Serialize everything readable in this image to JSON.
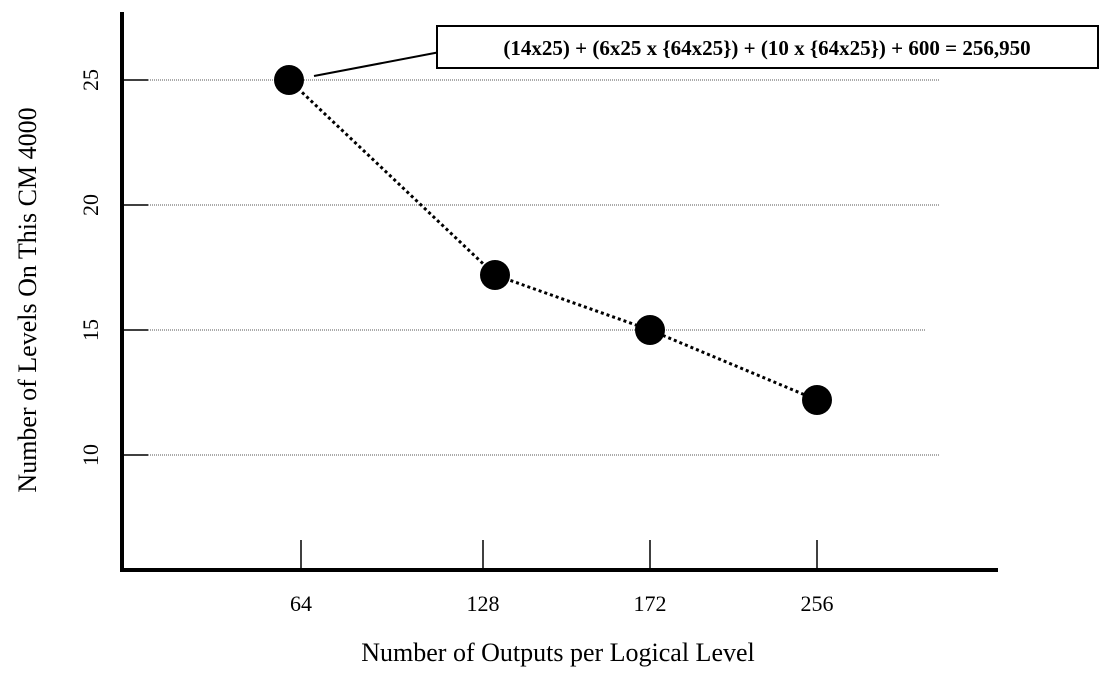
{
  "chart_data": {
    "type": "line",
    "title": "",
    "xlabel": "Number of Outputs per Logical Level",
    "ylabel": "Number of Levels On This CM 4000",
    "x_ticks": [
      "64",
      "128",
      "172",
      "256"
    ],
    "y_ticks": [
      "10",
      "15",
      "20",
      "25"
    ],
    "ylim": [
      5,
      27
    ],
    "grid": "horizontal dotted",
    "series": [
      {
        "values": [
          {
            "x": "64",
            "y": 25
          },
          {
            "x": "128",
            "y": 17.2
          },
          {
            "x": "172",
            "y": 15
          },
          {
            "x": "256",
            "y": 12.2
          }
        ]
      }
    ],
    "annotation": {
      "text": "(14x25) + (6x25 x {64x25}) + (10 x {64x25}) + 600  =  256,950",
      "points_to": {
        "x": "64",
        "y": 25
      }
    }
  }
}
